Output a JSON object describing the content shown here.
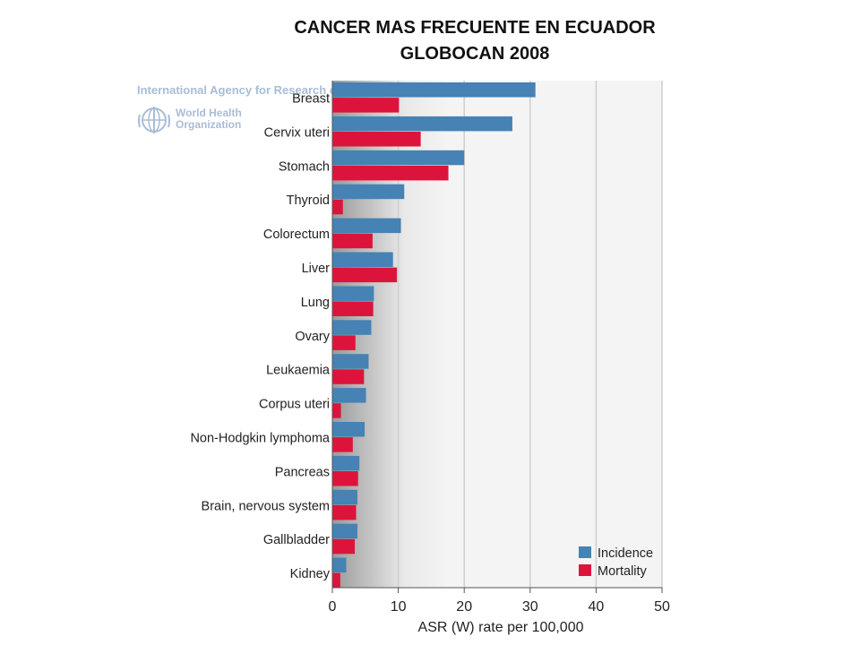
{
  "header": {
    "title": "CANCER MAS FRECUENTE EN ECUADOR",
    "subtitle": "GLOBOCAN  2008"
  },
  "watermark": {
    "agency": "International Agency for Research on",
    "who_line1": "World Health",
    "who_line2": "Organization",
    "emblem_icon": "who-emblem-icon"
  },
  "colors": {
    "incidence": "#4682b4",
    "mortality": "#dc143c",
    "plot_background": "#f4f4f4",
    "gridline": "#cfcfcf"
  },
  "chart_data": {
    "type": "bar",
    "orientation": "horizontal",
    "categories": [
      "Breast",
      "Cervix uteri",
      "Stomach",
      "Thyroid",
      "Colorectum",
      "Liver",
      "Lung",
      "Ovary",
      "Leukaemia",
      "Corpus uteri",
      "Non-Hodgkin lymphoma",
      "Pancreas",
      "Brain, nervous system",
      "Gallbladder",
      "Kidney"
    ],
    "series": [
      {
        "name": "Incidence",
        "color": "#4682b4",
        "values": [
          30.8,
          27.3,
          20.0,
          10.9,
          10.4,
          9.2,
          6.3,
          5.9,
          5.5,
          5.1,
          4.9,
          4.1,
          3.8,
          3.8,
          2.1
        ]
      },
      {
        "name": "Mortality",
        "color": "#dc143c",
        "values": [
          10.1,
          13.4,
          17.6,
          1.6,
          6.1,
          9.8,
          6.2,
          3.5,
          4.8,
          1.3,
          3.1,
          3.9,
          3.6,
          3.4,
          1.2
        ]
      }
    ],
    "xlabel": "ASR (W) rate per 100,000",
    "ylabel": "",
    "xlim": [
      0,
      50
    ],
    "xticks": [
      "0",
      "10",
      "20",
      "30",
      "40",
      "50"
    ],
    "grid": true,
    "legend_position": "bottom-right"
  }
}
